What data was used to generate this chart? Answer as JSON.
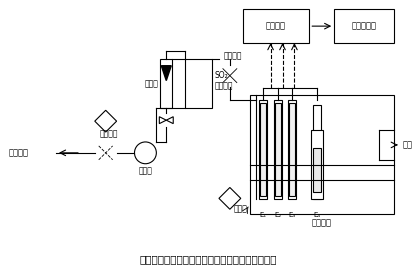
{
  "title": "図７　電量滴定法による硫化水素計測器の原理図",
  "bg_color": "#ffffff",
  "labels": {
    "air_inlet": "大気入口",
    "filter1": "フィルタ",
    "pump": "ポンプ",
    "flowmeter": "流量計",
    "so2_scrubber": "SO₂\nスクラバ",
    "filter2": "フィルタ",
    "electrolyte": "電解液",
    "electrolytic_cell": "電解セル",
    "control_circuit": "制御回路",
    "recorder": "指示記録計",
    "exhaust": "排出",
    "E1": "E₁",
    "E2": "E₂",
    "E3": "E₃",
    "E4": "E₄"
  }
}
